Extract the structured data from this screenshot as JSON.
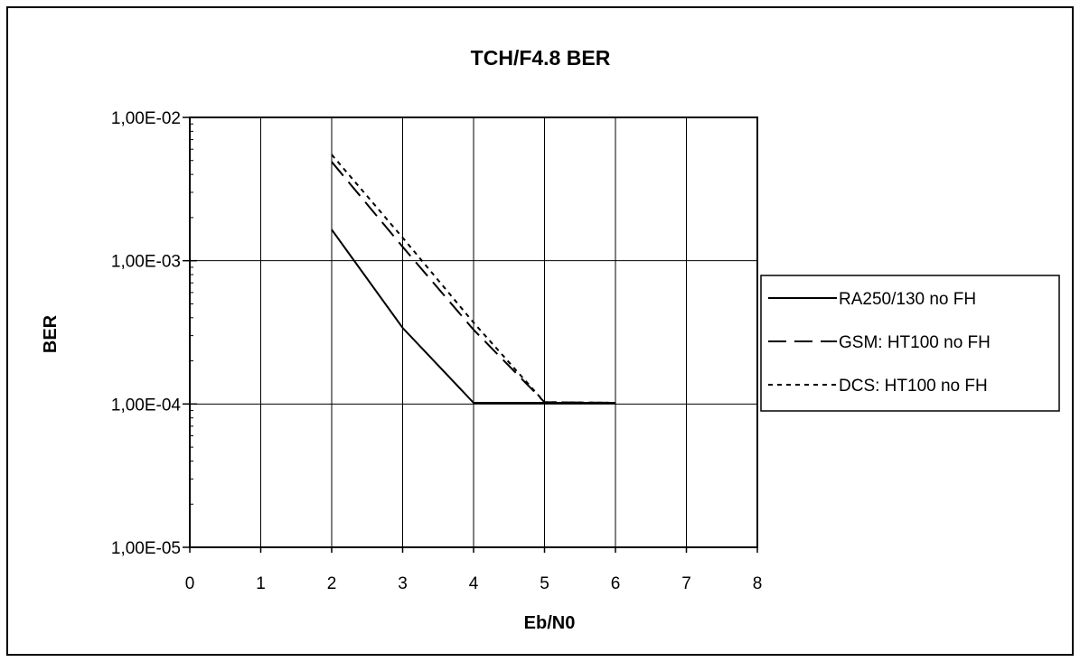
{
  "chart_data": {
    "type": "line",
    "title": "TCH/F4.8  BER",
    "xlabel": "Eb/N0",
    "ylabel": "BER",
    "x_scale": "linear",
    "y_scale": "log",
    "xlim": [
      0,
      8
    ],
    "ylim": [
      1e-05,
      0.01
    ],
    "x_ticks": [
      "0",
      "1",
      "2",
      "3",
      "4",
      "5",
      "6",
      "7",
      "8"
    ],
    "y_ticks": [
      "1,00E-02",
      "1,00E-03",
      "1,00E-04",
      "1,00E-05"
    ],
    "grid": true,
    "legend_position": "right",
    "series": [
      {
        "name": "RA250/130 no FH",
        "line_style": "solid",
        "x": [
          2,
          3,
          4,
          5,
          6
        ],
        "y": [
          0.00165,
          0.00034,
          0.000102,
          0.000102,
          0.000102
        ]
      },
      {
        "name": "GSM: HT100 no FH",
        "line_style": "dashed",
        "x": [
          2,
          3,
          4,
          5,
          6
        ],
        "y": [
          0.0049,
          0.00125,
          0.00033,
          0.000103,
          0.000102
        ]
      },
      {
        "name": "DCS: HT100 no FH",
        "line_style": "dotted",
        "x": [
          2,
          3,
          4,
          5,
          6
        ],
        "y": [
          0.0055,
          0.00145,
          0.00037,
          0.000103,
          0.000102
        ]
      }
    ]
  }
}
